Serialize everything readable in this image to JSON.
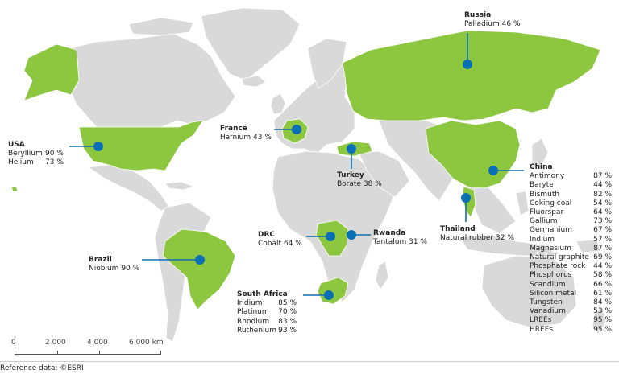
{
  "labels": {
    "russia": {
      "name": "Russia",
      "rows": [
        [
          "Palladium",
          "46 %"
        ]
      ]
    },
    "usa": {
      "name": "USA",
      "rows": [
        [
          "Beryllium",
          "90 %"
        ],
        [
          "Helium",
          "73 %"
        ]
      ]
    },
    "france": {
      "name": "France",
      "rows": [
        [
          "Hafnium",
          "43 %"
        ]
      ]
    },
    "turkey": {
      "name": "Turkey",
      "rows": [
        [
          "Borate",
          "38 %"
        ]
      ]
    },
    "china": {
      "name": "China",
      "rows": [
        [
          "Antimony",
          "87 %"
        ],
        [
          "Baryte",
          "44 %"
        ],
        [
          "Bismuth",
          "82 %"
        ],
        [
          "Coking coal",
          "54 %"
        ],
        [
          "Fluorspar",
          "64 %"
        ],
        [
          "Gallium",
          "73 %"
        ],
        [
          "Germanium",
          "67 %"
        ],
        [
          "Indium",
          "57 %"
        ],
        [
          "Magnesium",
          "87 %"
        ],
        [
          "Natural graphite",
          "69 %"
        ],
        [
          "Phosphate rock",
          "44 %"
        ],
        [
          "Phosphorus",
          "58 %"
        ],
        [
          "Scandium",
          "66 %"
        ],
        [
          "Silicon metal",
          "61 %"
        ],
        [
          "Tungsten",
          "84 %"
        ],
        [
          "Vanadium",
          "53 %"
        ],
        [
          "LREEs",
          "95 %"
        ],
        [
          "HREEs",
          "95 %"
        ]
      ]
    },
    "thailand": {
      "name": "Thailand",
      "rows": [
        [
          "Natural rubber",
          "32 %"
        ]
      ]
    },
    "drc": {
      "name": "DRC",
      "rows": [
        [
          "Cobalt",
          "64 %"
        ]
      ]
    },
    "rwanda": {
      "name": "Rwanda",
      "rows": [
        [
          "Tantalum",
          "31 %"
        ]
      ]
    },
    "brazil": {
      "name": "Brazil",
      "rows": [
        [
          "Niobium",
          "90 %"
        ]
      ]
    },
    "south_africa": {
      "name": "South Africa",
      "rows": [
        [
          "Iridium",
          "85 %"
        ],
        [
          "Platinum",
          "70 %"
        ],
        [
          "Rhodium",
          "83 %"
        ],
        [
          "Ruthenium",
          "93 %"
        ]
      ]
    }
  },
  "scale": {
    "ticks": [
      "0",
      "2 000",
      "4 000",
      "6 000 km"
    ]
  },
  "reference": "Reference data: ©ESRI",
  "colors": {
    "highlight": "#8dc63f",
    "land": "#d9d9d9",
    "marker": "#0b6fb6"
  }
}
